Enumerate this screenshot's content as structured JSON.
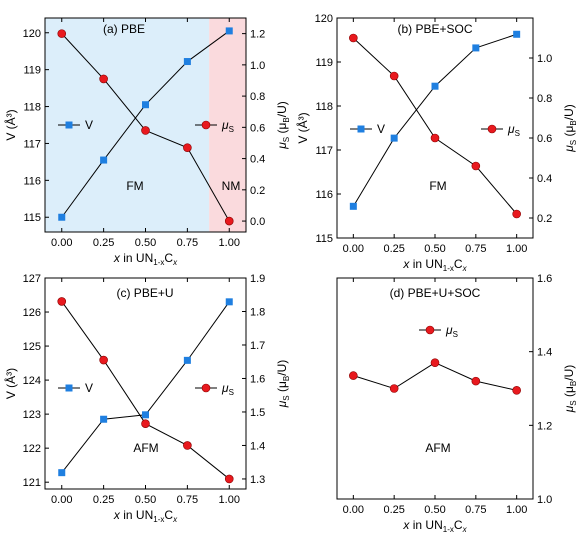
{
  "chart_data": [
    {
      "panel": "a",
      "type": "line",
      "title": "(a) PBE",
      "x": [
        0.0,
        0.25,
        0.5,
        0.75,
        1.0
      ],
      "x_ticks": [
        "0.00",
        "0.25",
        "0.50",
        "0.75",
        "1.00"
      ],
      "xlim": [
        -0.1,
        1.1
      ],
      "xlabel_parts": [
        "x",
        " in UN",
        "1-x",
        "C",
        "x"
      ],
      "left_axis": {
        "label": "V (Å³)",
        "lim": [
          114.6,
          120.4
        ],
        "ticks": [
          "115",
          "116",
          "117",
          "118",
          "119",
          "120"
        ]
      },
      "right_axis": {
        "label_parts": [
          "μ",
          "S",
          " (μ",
          "B",
          "/U)"
        ],
        "lim": [
          -0.07,
          1.3
        ],
        "ticks": [
          "0.0",
          "0.2",
          "0.4",
          "0.6",
          "0.8",
          "1.0",
          "1.2"
        ]
      },
      "series": [
        {
          "name": "V",
          "axis": "left",
          "marker": "square",
          "color": "#1f7fe0",
          "values": [
            115.0,
            116.55,
            118.05,
            119.22,
            120.05
          ]
        },
        {
          "name_parts": [
            "μ",
            "S"
          ],
          "axis": "right",
          "marker": "circle",
          "color": "#e8191e",
          "values": [
            1.2,
            0.91,
            0.58,
            0.47,
            0.0
          ]
        }
      ],
      "regions": [
        {
          "label": "FM",
          "from": -0.1,
          "to": 0.88,
          "color": "#dceefa"
        },
        {
          "label": "NM",
          "from": 0.88,
          "to": 1.1,
          "color": "#fadadd"
        }
      ]
    },
    {
      "panel": "b",
      "type": "line",
      "title": "(b) PBE+SOC",
      "x": [
        0.0,
        0.25,
        0.5,
        0.75,
        1.0
      ],
      "x_ticks": [
        "0.00",
        "0.25",
        "0.50",
        "0.75",
        "1.00"
      ],
      "xlim": [
        -0.1,
        1.1
      ],
      "xlabel_parts": [
        "x",
        " in UN",
        "1-x",
        "C",
        "x"
      ],
      "left_axis": {
        "label": "V (Å³)",
        "lim": [
          115.0,
          120.0
        ],
        "ticks": [
          "115",
          "116",
          "117",
          "118",
          "119",
          "120"
        ]
      },
      "right_axis": {
        "label_parts": [
          "μ",
          "S",
          " (μ",
          "B",
          "/U)"
        ],
        "lim": [
          0.1,
          1.2
        ],
        "ticks": [
          "0.2",
          "0.4",
          "0.6",
          "0.8",
          "1.0"
        ]
      },
      "series": [
        {
          "name": "V",
          "axis": "left",
          "marker": "square",
          "color": "#1f7fe0",
          "values": [
            115.72,
            117.27,
            118.45,
            119.32,
            119.63
          ]
        },
        {
          "name_parts": [
            "μ",
            "S"
          ],
          "axis": "right",
          "marker": "circle",
          "color": "#e8191e",
          "values": [
            1.1,
            0.91,
            0.6,
            0.46,
            0.22
          ]
        }
      ],
      "annotation": "FM"
    },
    {
      "panel": "c",
      "type": "line",
      "title": "(c) PBE+U",
      "x": [
        0.0,
        0.25,
        0.5,
        0.75,
        1.0
      ],
      "x_ticks": [
        "0.00",
        "0.25",
        "0.50",
        "0.75",
        "1.00"
      ],
      "xlim": [
        -0.1,
        1.1
      ],
      "xlabel_parts": [
        "x",
        " in UN",
        "1-x",
        "C",
        "x"
      ],
      "left_axis": {
        "label": "V (Å³)",
        "lim": [
          120.8,
          127.0
        ],
        "ticks": [
          "121",
          "122",
          "123",
          "124",
          "125",
          "126",
          "127"
        ]
      },
      "right_axis": {
        "label_parts": [
          "μ",
          "S",
          " (μ",
          "B",
          "/U)"
        ],
        "lim": [
          1.27,
          1.9
        ],
        "ticks": [
          "1.3",
          "1.4",
          "1.5",
          "1.6",
          "1.7",
          "1.8",
          "1.9"
        ]
      },
      "series": [
        {
          "name": "V",
          "axis": "left",
          "marker": "square",
          "color": "#1f7fe0",
          "values": [
            121.28,
            122.85,
            122.98,
            124.58,
            126.3
          ]
        },
        {
          "name_parts": [
            "μ",
            "S"
          ],
          "axis": "right",
          "marker": "circle",
          "color": "#e8191e",
          "values": [
            1.83,
            1.655,
            1.465,
            1.4,
            1.3
          ]
        }
      ],
      "annotation": "AFM"
    },
    {
      "panel": "d",
      "type": "line",
      "title": "(d) PBE+U+SOC",
      "x": [
        0.0,
        0.25,
        0.5,
        0.75,
        1.0
      ],
      "x_ticks": [
        "0.00",
        "0.25",
        "0.50",
        "0.75",
        "1.00"
      ],
      "xlim": [
        -0.1,
        1.1
      ],
      "xlabel_parts": [
        "x",
        " in UN",
        "1-x",
        "C",
        "x"
      ],
      "right_axis": {
        "label_parts": [
          "μ",
          "S",
          " (μ",
          "B",
          "/U)"
        ],
        "lim": [
          1.0,
          1.6
        ],
        "ticks": [
          "1.0",
          "1.2",
          "1.4",
          "1.6"
        ]
      },
      "series": [
        {
          "name_parts": [
            "μ",
            "S"
          ],
          "axis": "right",
          "marker": "circle",
          "color": "#e8191e",
          "values": [
            1.335,
            1.3,
            1.37,
            1.32,
            1.295
          ]
        }
      ],
      "annotation": "AFM"
    }
  ]
}
